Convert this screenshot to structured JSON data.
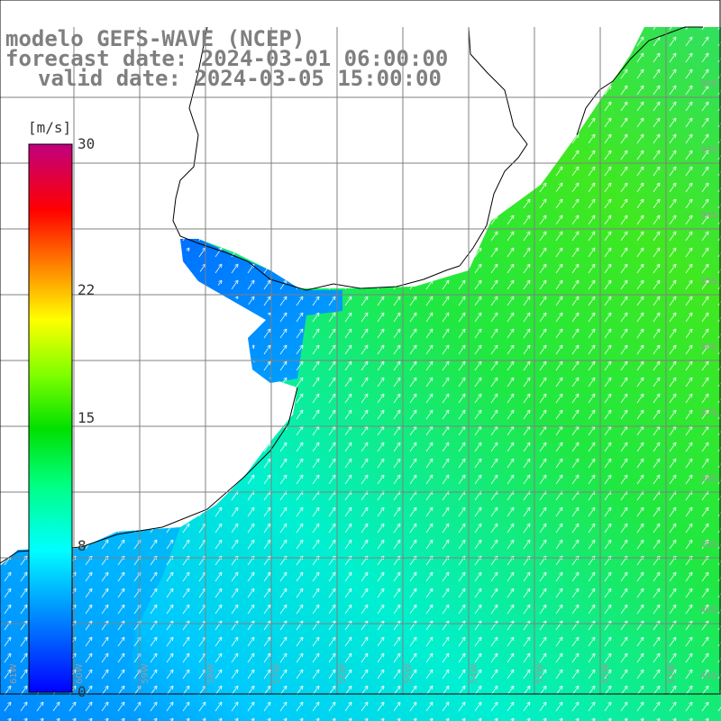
{
  "title": {
    "line1": "modelo GEFS-WAVE (NCEP)",
    "line2": "forecast date: 2024-03-01 06:00:00",
    "line3": "valid date: 2024-03-05 15:00:00"
  },
  "colorbar": {
    "unit": "[m/s]",
    "ticks": [
      {
        "label": "30",
        "value": 30
      },
      {
        "label": "22",
        "value": 22
      },
      {
        "label": "15",
        "value": 15
      },
      {
        "label": "8",
        "value": 8
      },
      {
        "label": "0",
        "value": 0
      }
    ],
    "range": [
      0,
      30
    ],
    "colors": [
      "#0000ff",
      "#0080ff",
      "#00e0ff",
      "#00ffc0",
      "#00e000",
      "#80ff00",
      "#ffff00",
      "#ff8000",
      "#ff0000",
      "#e00080",
      "#b00080"
    ]
  },
  "grid": {
    "lat_labels": [
      "32S",
      "33S",
      "34S",
      "35S",
      "36S",
      "37S",
      "38S",
      "39S",
      "40S",
      "41S"
    ],
    "lon_labels": [
      "61W",
      "60W",
      "59W",
      "58W",
      "57W",
      "56W",
      "55W",
      "54W",
      "53W",
      "52W",
      "51W"
    ]
  },
  "map_data": {
    "field": "wind speed",
    "unit": "m/s",
    "land_color": "#ffffff",
    "coast_color": "#000000",
    "grid_color": "#808080",
    "arrow_color": "#ffffff"
  }
}
